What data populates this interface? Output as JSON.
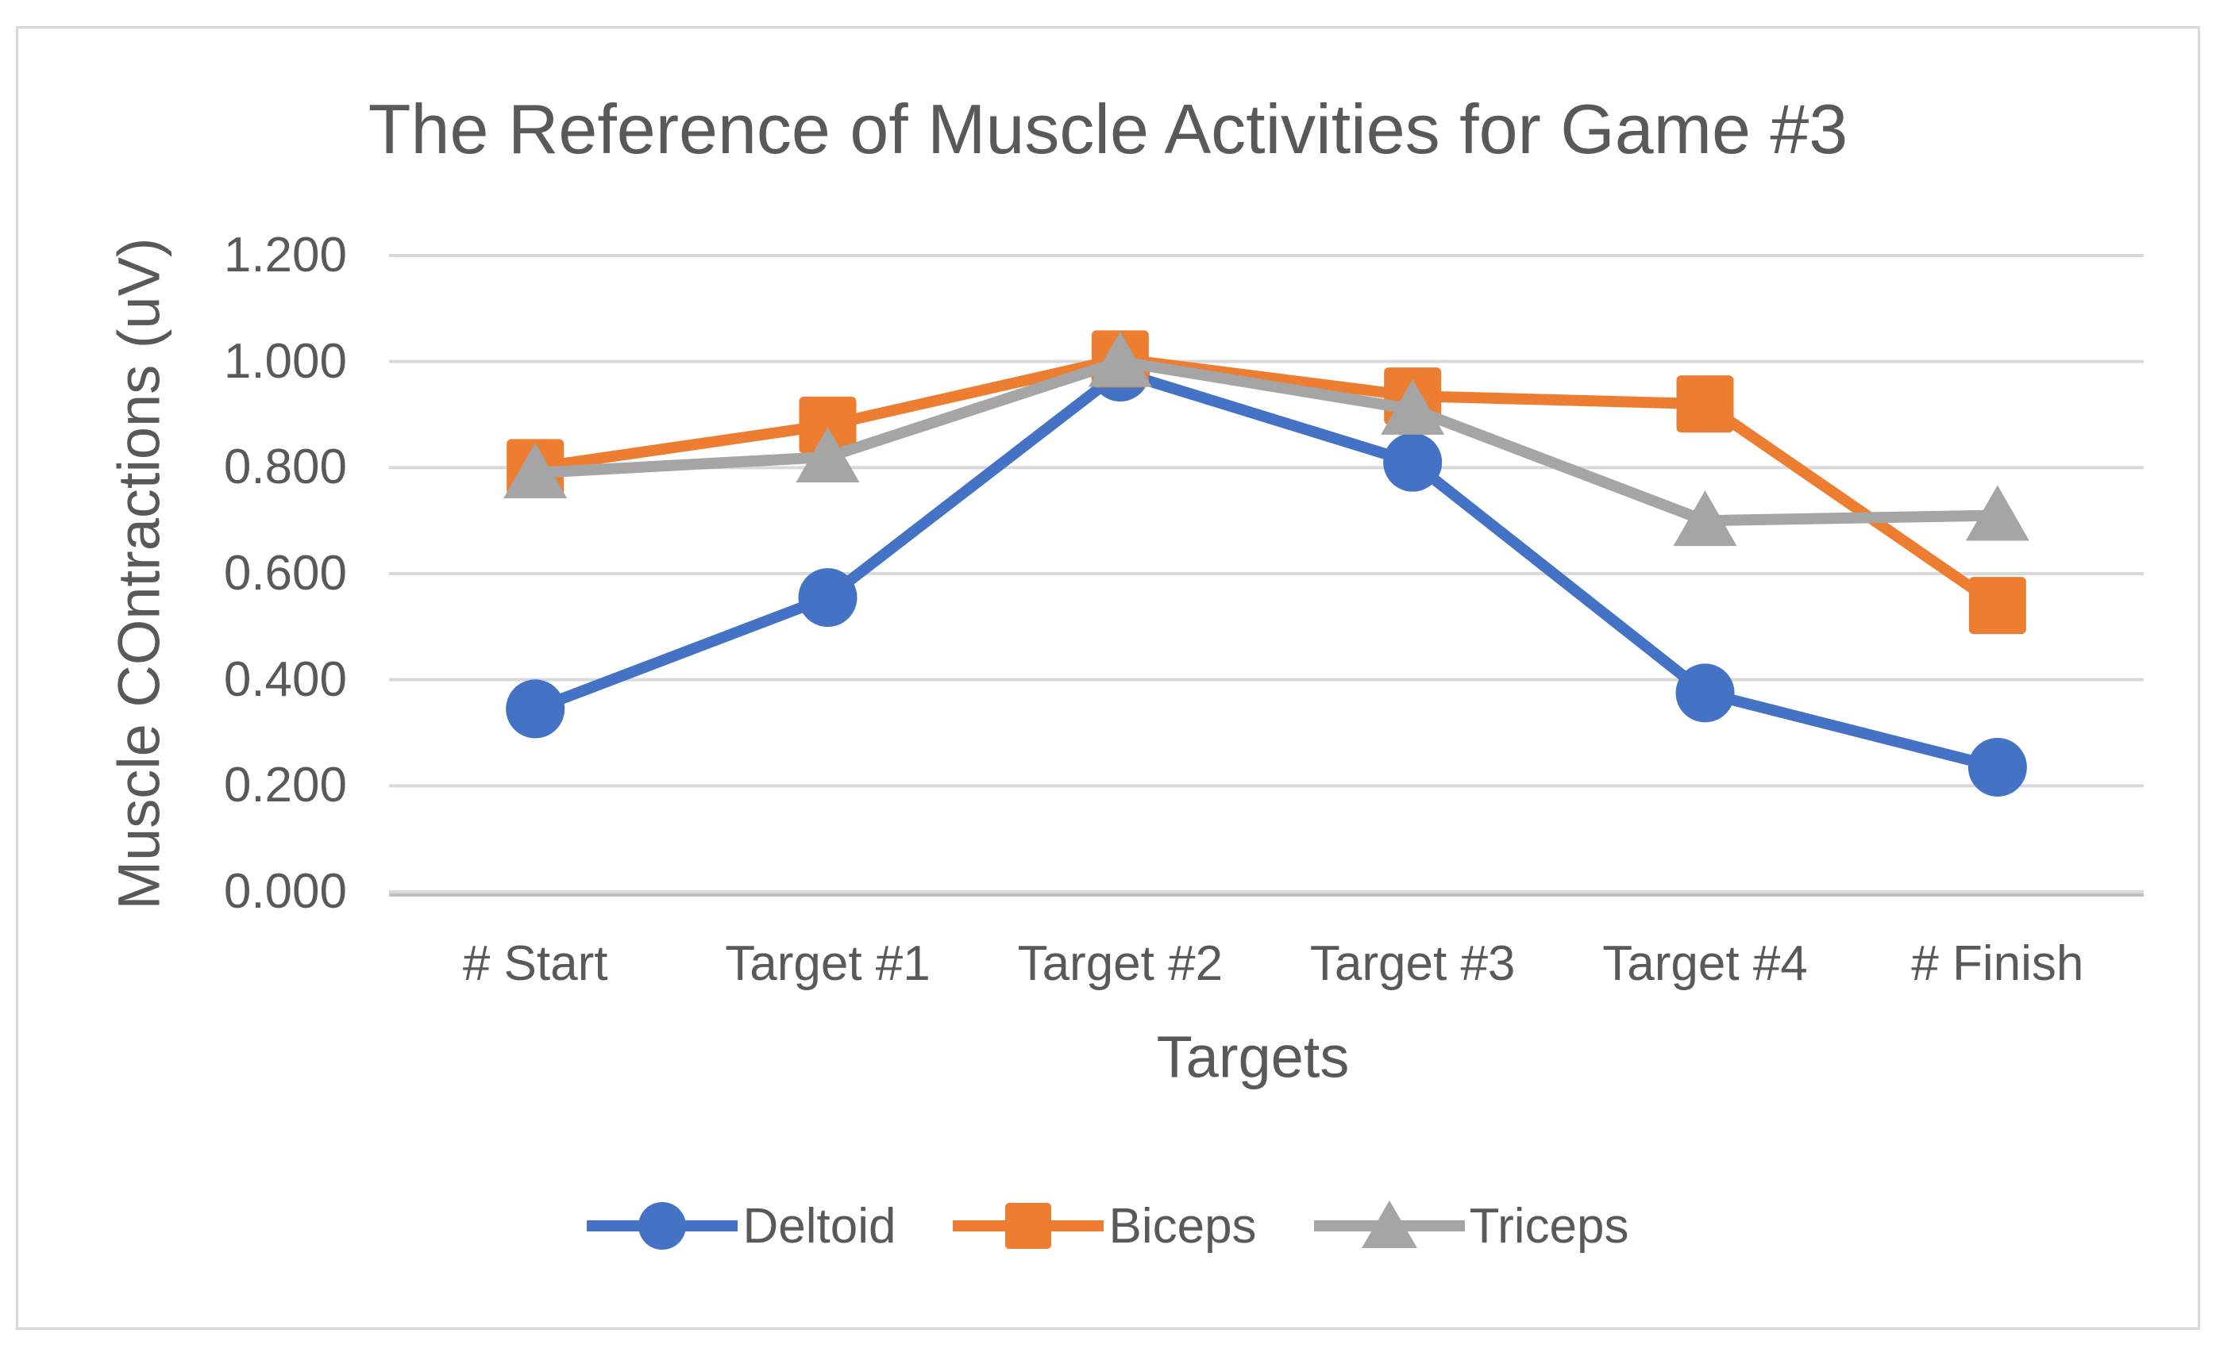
{
  "chart_data": {
    "type": "line",
    "title": "The Reference of Muscle Activities for Game #3",
    "xlabel": "Targets",
    "ylabel": "Muscle COntractions (uV)",
    "categories": [
      "# Start",
      "Target #1",
      "Target #2",
      "Target #3",
      "Target #4",
      "# Finish"
    ],
    "series": [
      {
        "name": "Deltoid",
        "marker": "circle",
        "color": "#4472C4",
        "values": [
          0.345,
          0.555,
          0.98,
          0.81,
          0.375,
          0.235
        ]
      },
      {
        "name": "Biceps",
        "marker": "square",
        "color": "#ED7D31",
        "values": [
          0.8,
          0.88,
          1.005,
          0.935,
          0.92,
          0.54
        ]
      },
      {
        "name": "Triceps",
        "marker": "triangle",
        "color": "#A5A5A5",
        "values": [
          0.79,
          0.82,
          1.0,
          0.91,
          0.7,
          0.71
        ]
      }
    ],
    "ylim": [
      0,
      1.2
    ],
    "y_tick_step": 0.2,
    "y_tick_labels": [
      "0.000",
      "0.200",
      "0.400",
      "0.600",
      "0.800",
      "1.000",
      "1.200"
    ],
    "grid": "horizontal",
    "legend_position": "bottom",
    "colors": {
      "gridline": "#D9D9D9",
      "axis_line": "#BFBFBF",
      "text": "#595959",
      "frame_border": "#D9D9D9",
      "background": "#FFFFFF"
    }
  }
}
